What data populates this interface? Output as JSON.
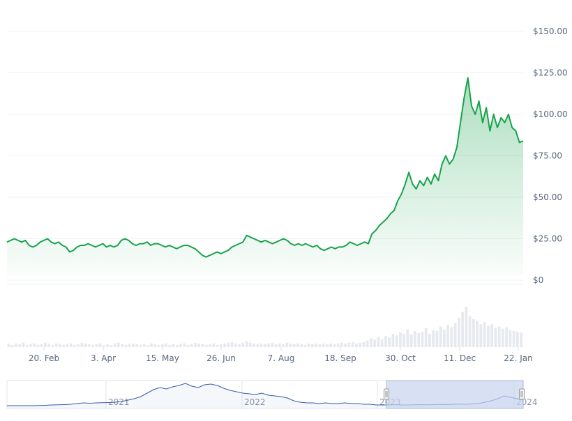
{
  "chart_data": {
    "type": "area",
    "title": "",
    "xlabel": "",
    "ylabel": "",
    "ylim": [
      0,
      150
    ],
    "y_ticks": [
      "$150.00",
      "$125.00",
      "$100.00",
      "$75.00",
      "$50.00",
      "$25.00",
      "$0"
    ],
    "y_tick_values": [
      150,
      125,
      100,
      75,
      50,
      25,
      0
    ],
    "x_ticks": [
      "20. Feb",
      "3. Apr",
      "15. May",
      "26. Jun",
      "7. Aug",
      "18. Sep",
      "30. Oct",
      "11. Dec",
      "22. Jan"
    ],
    "grid": true,
    "legend": "none",
    "colors": {
      "line": "#16a34a",
      "area_top": "#16a34a",
      "navigator_line": "#335cad",
      "navigator_fill": "#c8d3ee",
      "volume": "#e6e9ee",
      "grid": "#eef0f3"
    },
    "price_series": [
      23,
      24,
      25,
      24,
      23,
      24,
      21,
      20,
      21,
      23,
      24,
      25,
      23,
      22,
      23,
      21,
      20,
      17,
      18,
      20,
      21,
      21,
      22,
      21,
      20,
      21,
      22,
      20,
      21,
      20,
      21,
      24,
      25,
      24,
      22,
      21,
      22,
      22,
      23,
      21,
      22,
      22,
      21,
      20,
      21,
      20,
      19,
      20,
      21,
      21,
      20,
      19,
      17,
      15,
      14,
      15,
      16,
      17,
      16,
      17,
      18,
      20,
      21,
      22,
      23,
      27,
      26,
      25,
      24,
      23,
      24,
      23,
      22,
      23,
      24,
      25,
      24,
      22,
      21,
      22,
      21,
      22,
      21,
      20,
      21,
      19,
      18,
      19,
      20,
      19,
      20,
      20,
      21,
      23,
      22,
      21,
      22,
      23,
      22,
      28,
      30,
      33,
      35,
      37,
      40,
      42,
      48,
      52,
      58,
      65,
      58,
      55,
      60,
      57,
      62,
      58,
      64,
      60,
      70,
      75,
      70,
      73,
      80,
      95,
      110,
      122,
      105,
      100,
      108,
      95,
      104,
      90,
      100,
      92,
      98,
      95,
      100,
      92,
      90,
      83,
      84
    ],
    "volume_series": [
      4,
      3,
      5,
      4,
      6,
      3,
      4,
      5,
      3,
      4,
      6,
      4,
      3,
      5,
      4,
      3,
      4,
      5,
      3,
      4,
      6,
      5,
      4,
      3,
      4,
      5,
      3,
      4,
      3,
      5,
      6,
      4,
      3,
      4,
      5,
      4,
      3,
      4,
      3,
      5,
      4,
      3,
      4,
      5,
      3,
      4,
      3,
      4,
      5,
      3,
      4,
      6,
      5,
      4,
      3,
      4,
      5,
      3,
      4,
      5,
      6,
      7,
      5,
      4,
      6,
      8,
      6,
      5,
      4,
      5,
      4,
      5,
      6,
      4,
      5,
      4,
      6,
      5,
      4,
      5,
      4,
      3,
      5,
      4,
      5,
      4,
      5,
      4,
      5,
      4,
      5,
      6,
      5,
      6,
      7,
      5,
      6,
      7,
      9,
      12,
      10,
      14,
      11,
      15,
      13,
      18,
      16,
      20,
      18,
      24,
      17,
      22,
      19,
      21,
      26,
      18,
      23,
      22,
      28,
      24,
      30,
      27,
      33,
      40,
      48,
      55,
      42,
      38,
      36,
      31,
      34,
      29,
      31,
      26,
      28,
      25,
      27,
      23,
      22,
      21,
      20
    ],
    "navigator": {
      "years": [
        "2021",
        "2022",
        "2023",
        "2024"
      ],
      "series": [
        2,
        2,
        2,
        2,
        2,
        2.2,
        2.5,
        3,
        3.2,
        3.5,
        4,
        5,
        6,
        5.5,
        6,
        6.2,
        6.5,
        7,
        8,
        10,
        12,
        15,
        20,
        25,
        28,
        26,
        29,
        31,
        34,
        30,
        28,
        32,
        33,
        31,
        27,
        24,
        22,
        20,
        19,
        18,
        20,
        17,
        16,
        15,
        13,
        9,
        7,
        6,
        6,
        5,
        6,
        5,
        5,
        6,
        5,
        5,
        4,
        4,
        3,
        3,
        3,
        3.5,
        3,
        3,
        3.2,
        3.5,
        3.3,
        3.5,
        3.7,
        3.5,
        4,
        4.2,
        4,
        4.5,
        5,
        7,
        9,
        12,
        16,
        14,
        12,
        10
      ]
    }
  }
}
